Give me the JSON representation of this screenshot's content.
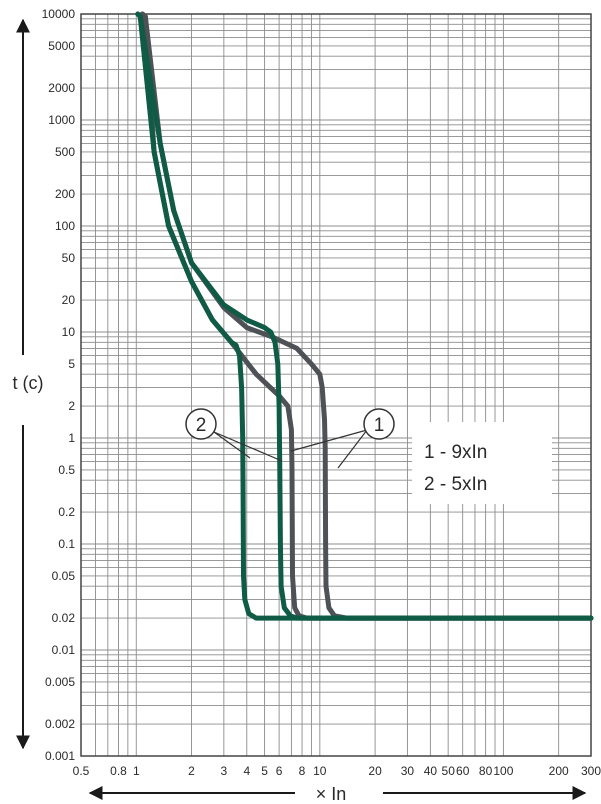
{
  "chart_data": {
    "type": "line",
    "title": "",
    "xlabel": "× In",
    "ylabel": "t (c)",
    "x_scale": "log",
    "y_scale": "log",
    "xlim": [
      0.5,
      300
    ],
    "ylim": [
      0.001,
      10000
    ],
    "grid": true,
    "x_ticks": [
      0.5,
      0.8,
      1,
      2,
      3,
      4,
      5,
      6,
      8,
      10,
      20,
      30,
      40,
      50,
      60,
      80,
      100,
      200,
      300
    ],
    "x_tick_labels": [
      "0.5",
      "0.8",
      "1",
      "2",
      "3",
      "4",
      "5",
      "6",
      "8",
      "10",
      "20",
      "30",
      "40",
      "50",
      "60",
      "80",
      "100",
      "200",
      "300"
    ],
    "y_ticks": [
      10000,
      5000,
      2000,
      1000,
      500,
      200,
      100,
      50,
      20,
      10,
      5,
      2,
      1,
      0.5,
      0.2,
      0.1,
      0.05,
      0.02,
      0.01,
      0.005,
      0.002,
      0.001
    ],
    "y_tick_labels": [
      "10000",
      "5000",
      "2000",
      "1000",
      "500",
      "200",
      "100",
      "50",
      "20",
      "10",
      "5",
      "2",
      "1",
      "0.5",
      "0.2",
      "0.1",
      "0.05",
      "0.02",
      "0.01",
      "0.005",
      "0.002",
      "0.001"
    ],
    "series": [
      {
        "color": "#4e5257",
        "points": [
          [
            1.08,
            10000
          ],
          [
            1.12,
            9500
          ],
          [
            1.35,
            600
          ],
          [
            1.6,
            140
          ],
          [
            2.0,
            45
          ],
          [
            3.0,
            17
          ],
          [
            4.0,
            11
          ],
          [
            5.5,
            9
          ],
          [
            7.5,
            7
          ],
          [
            9.0,
            5
          ],
          [
            10.0,
            4
          ],
          [
            10.3,
            3
          ],
          [
            10.6,
            1.5
          ],
          [
            10.7,
            0.8
          ],
          [
            10.75,
            0.1
          ],
          [
            10.8,
            0.04
          ],
          [
            11.2,
            0.025
          ],
          [
            12.0,
            0.021
          ],
          [
            14.0,
            0.02
          ],
          [
            300,
            0.02
          ]
        ]
      },
      {
        "color": "#4e5257",
        "points": [
          [
            1.08,
            10000
          ],
          [
            1.12,
            9500
          ],
          [
            1.25,
            500
          ],
          [
            1.5,
            100
          ],
          [
            2.0,
            30
          ],
          [
            2.6,
            13
          ],
          [
            3.3,
            8
          ],
          [
            4.5,
            4
          ],
          [
            6.0,
            2.5
          ],
          [
            6.7,
            2.0
          ],
          [
            7.0,
            1.2
          ],
          [
            7.05,
            0.5
          ],
          [
            7.1,
            0.05
          ],
          [
            7.3,
            0.025
          ],
          [
            7.7,
            0.021
          ],
          [
            8.5,
            0.02
          ],
          [
            300,
            0.02
          ]
        ]
      },
      {
        "color": "#0f5b46",
        "points": [
          [
            1.02,
            10000
          ],
          [
            1.05,
            9500
          ],
          [
            1.35,
            600
          ],
          [
            1.6,
            140
          ],
          [
            2.0,
            45
          ],
          [
            3.0,
            18
          ],
          [
            4.0,
            13
          ],
          [
            5.0,
            11
          ],
          [
            5.4,
            10
          ],
          [
            5.7,
            8
          ],
          [
            5.9,
            5
          ],
          [
            6.0,
            2
          ],
          [
            6.05,
            0.5
          ],
          [
            6.1,
            0.1
          ],
          [
            6.15,
            0.04
          ],
          [
            6.4,
            0.025
          ],
          [
            6.9,
            0.021
          ],
          [
            7.5,
            0.02
          ],
          [
            300,
            0.02
          ]
        ]
      },
      {
        "color": "#0f5b46",
        "points": [
          [
            1.02,
            10000
          ],
          [
            1.05,
            9500
          ],
          [
            1.25,
            500
          ],
          [
            1.5,
            100
          ],
          [
            2.0,
            30
          ],
          [
            2.6,
            13
          ],
          [
            3.3,
            8
          ],
          [
            3.5,
            7.5
          ],
          [
            3.65,
            6
          ],
          [
            3.75,
            3
          ],
          [
            3.8,
            1
          ],
          [
            3.82,
            0.3
          ],
          [
            3.84,
            0.05
          ],
          [
            3.9,
            0.03
          ],
          [
            4.1,
            0.022
          ],
          [
            4.5,
            0.02
          ],
          [
            300,
            0.02
          ]
        ]
      }
    ],
    "legend": {
      "line1": "1 - 9xIn",
      "line2": "2 - 5xIn"
    },
    "annotations": {
      "marker1": "1",
      "marker2": "2"
    }
  }
}
